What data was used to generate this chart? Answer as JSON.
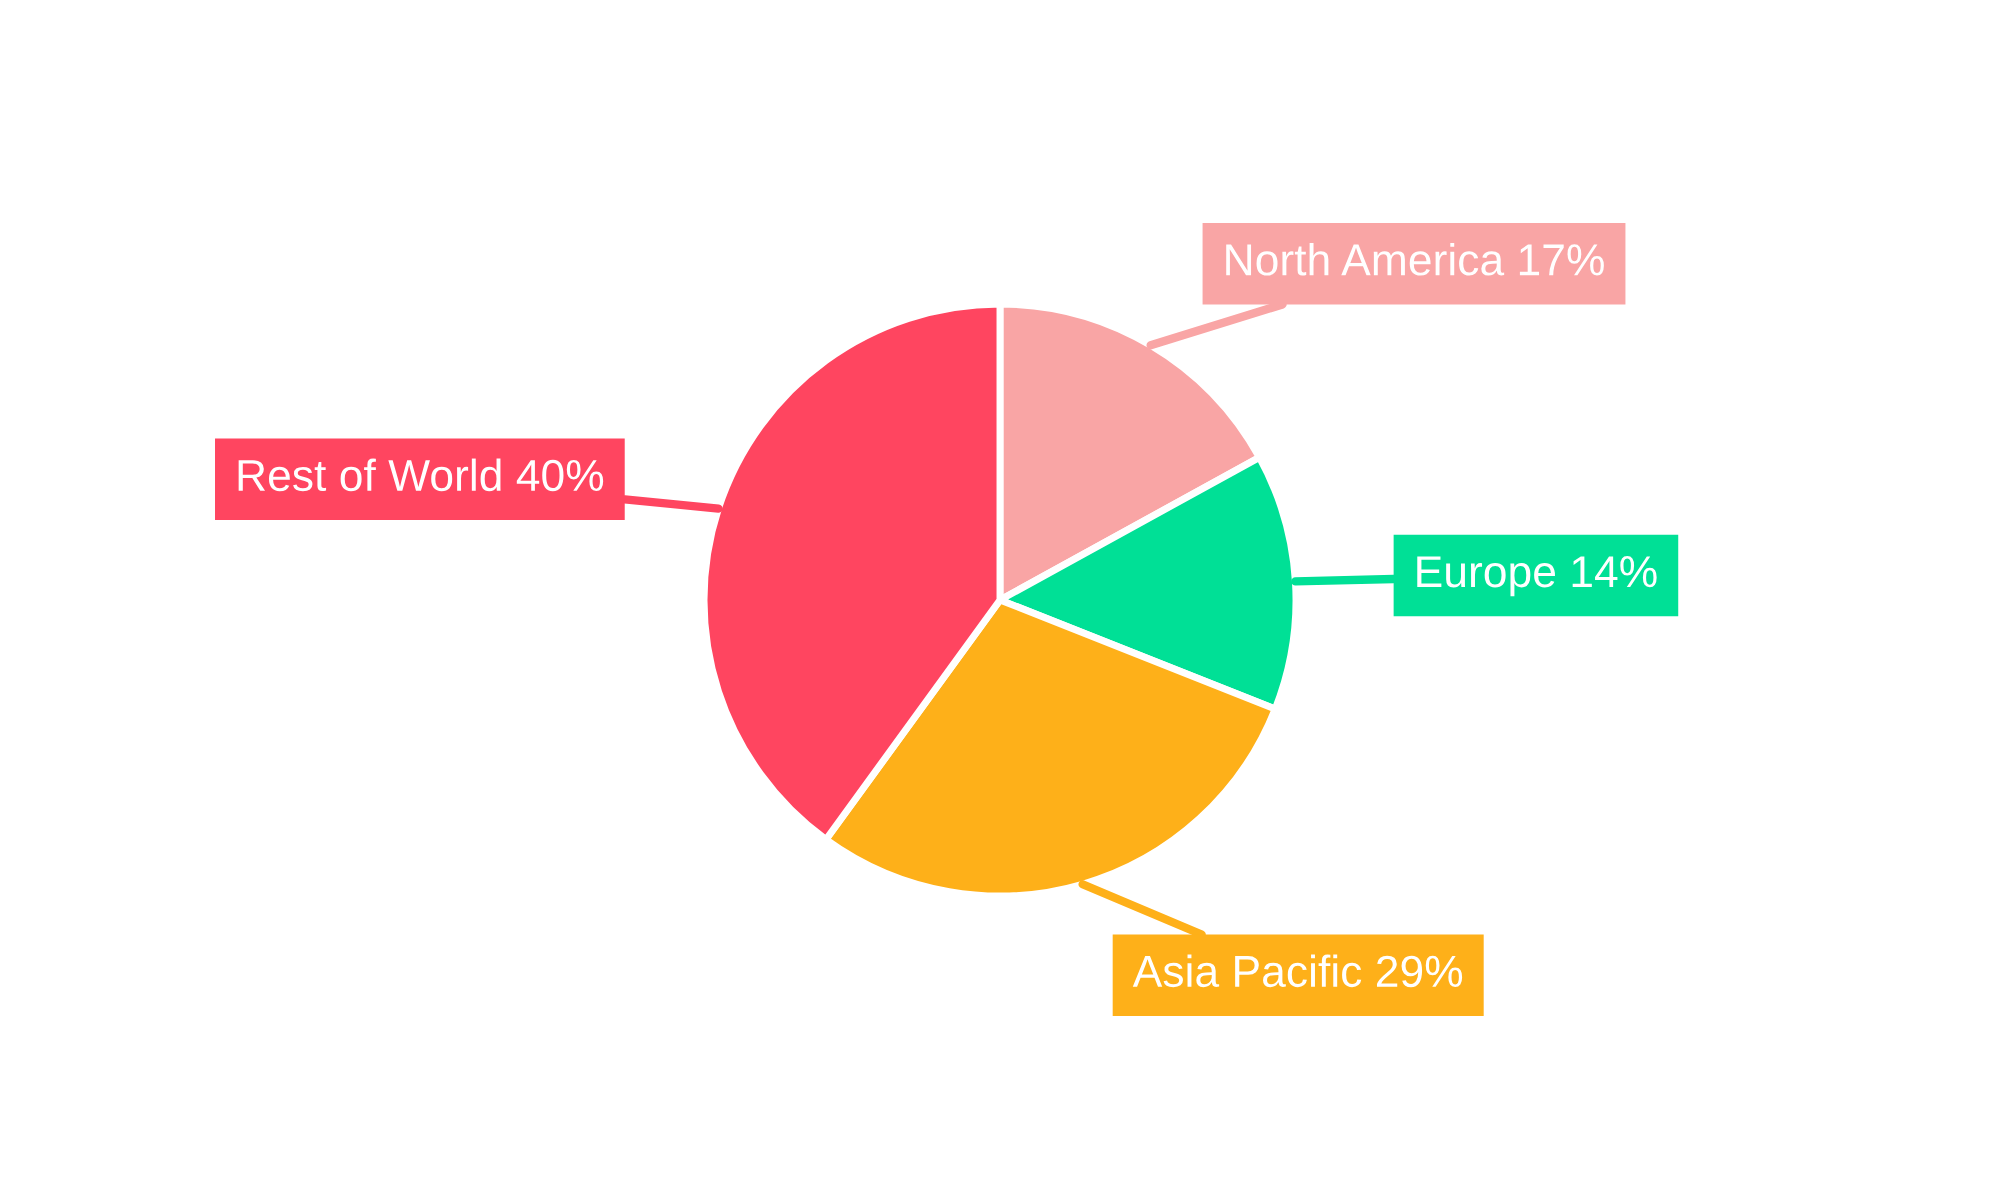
{
  "chart_data": {
    "type": "pie",
    "categories": [
      "North America",
      "Europe",
      "Asia Pacific",
      "Rest of World"
    ],
    "values": [
      17,
      14,
      29,
      40
    ],
    "value_labels": [
      "17%",
      "14%",
      "29%",
      "40%"
    ],
    "colors": [
      "#f9a5a5",
      "#00e096",
      "#feb019",
      "#ff4560"
    ],
    "legend": false
  }
}
